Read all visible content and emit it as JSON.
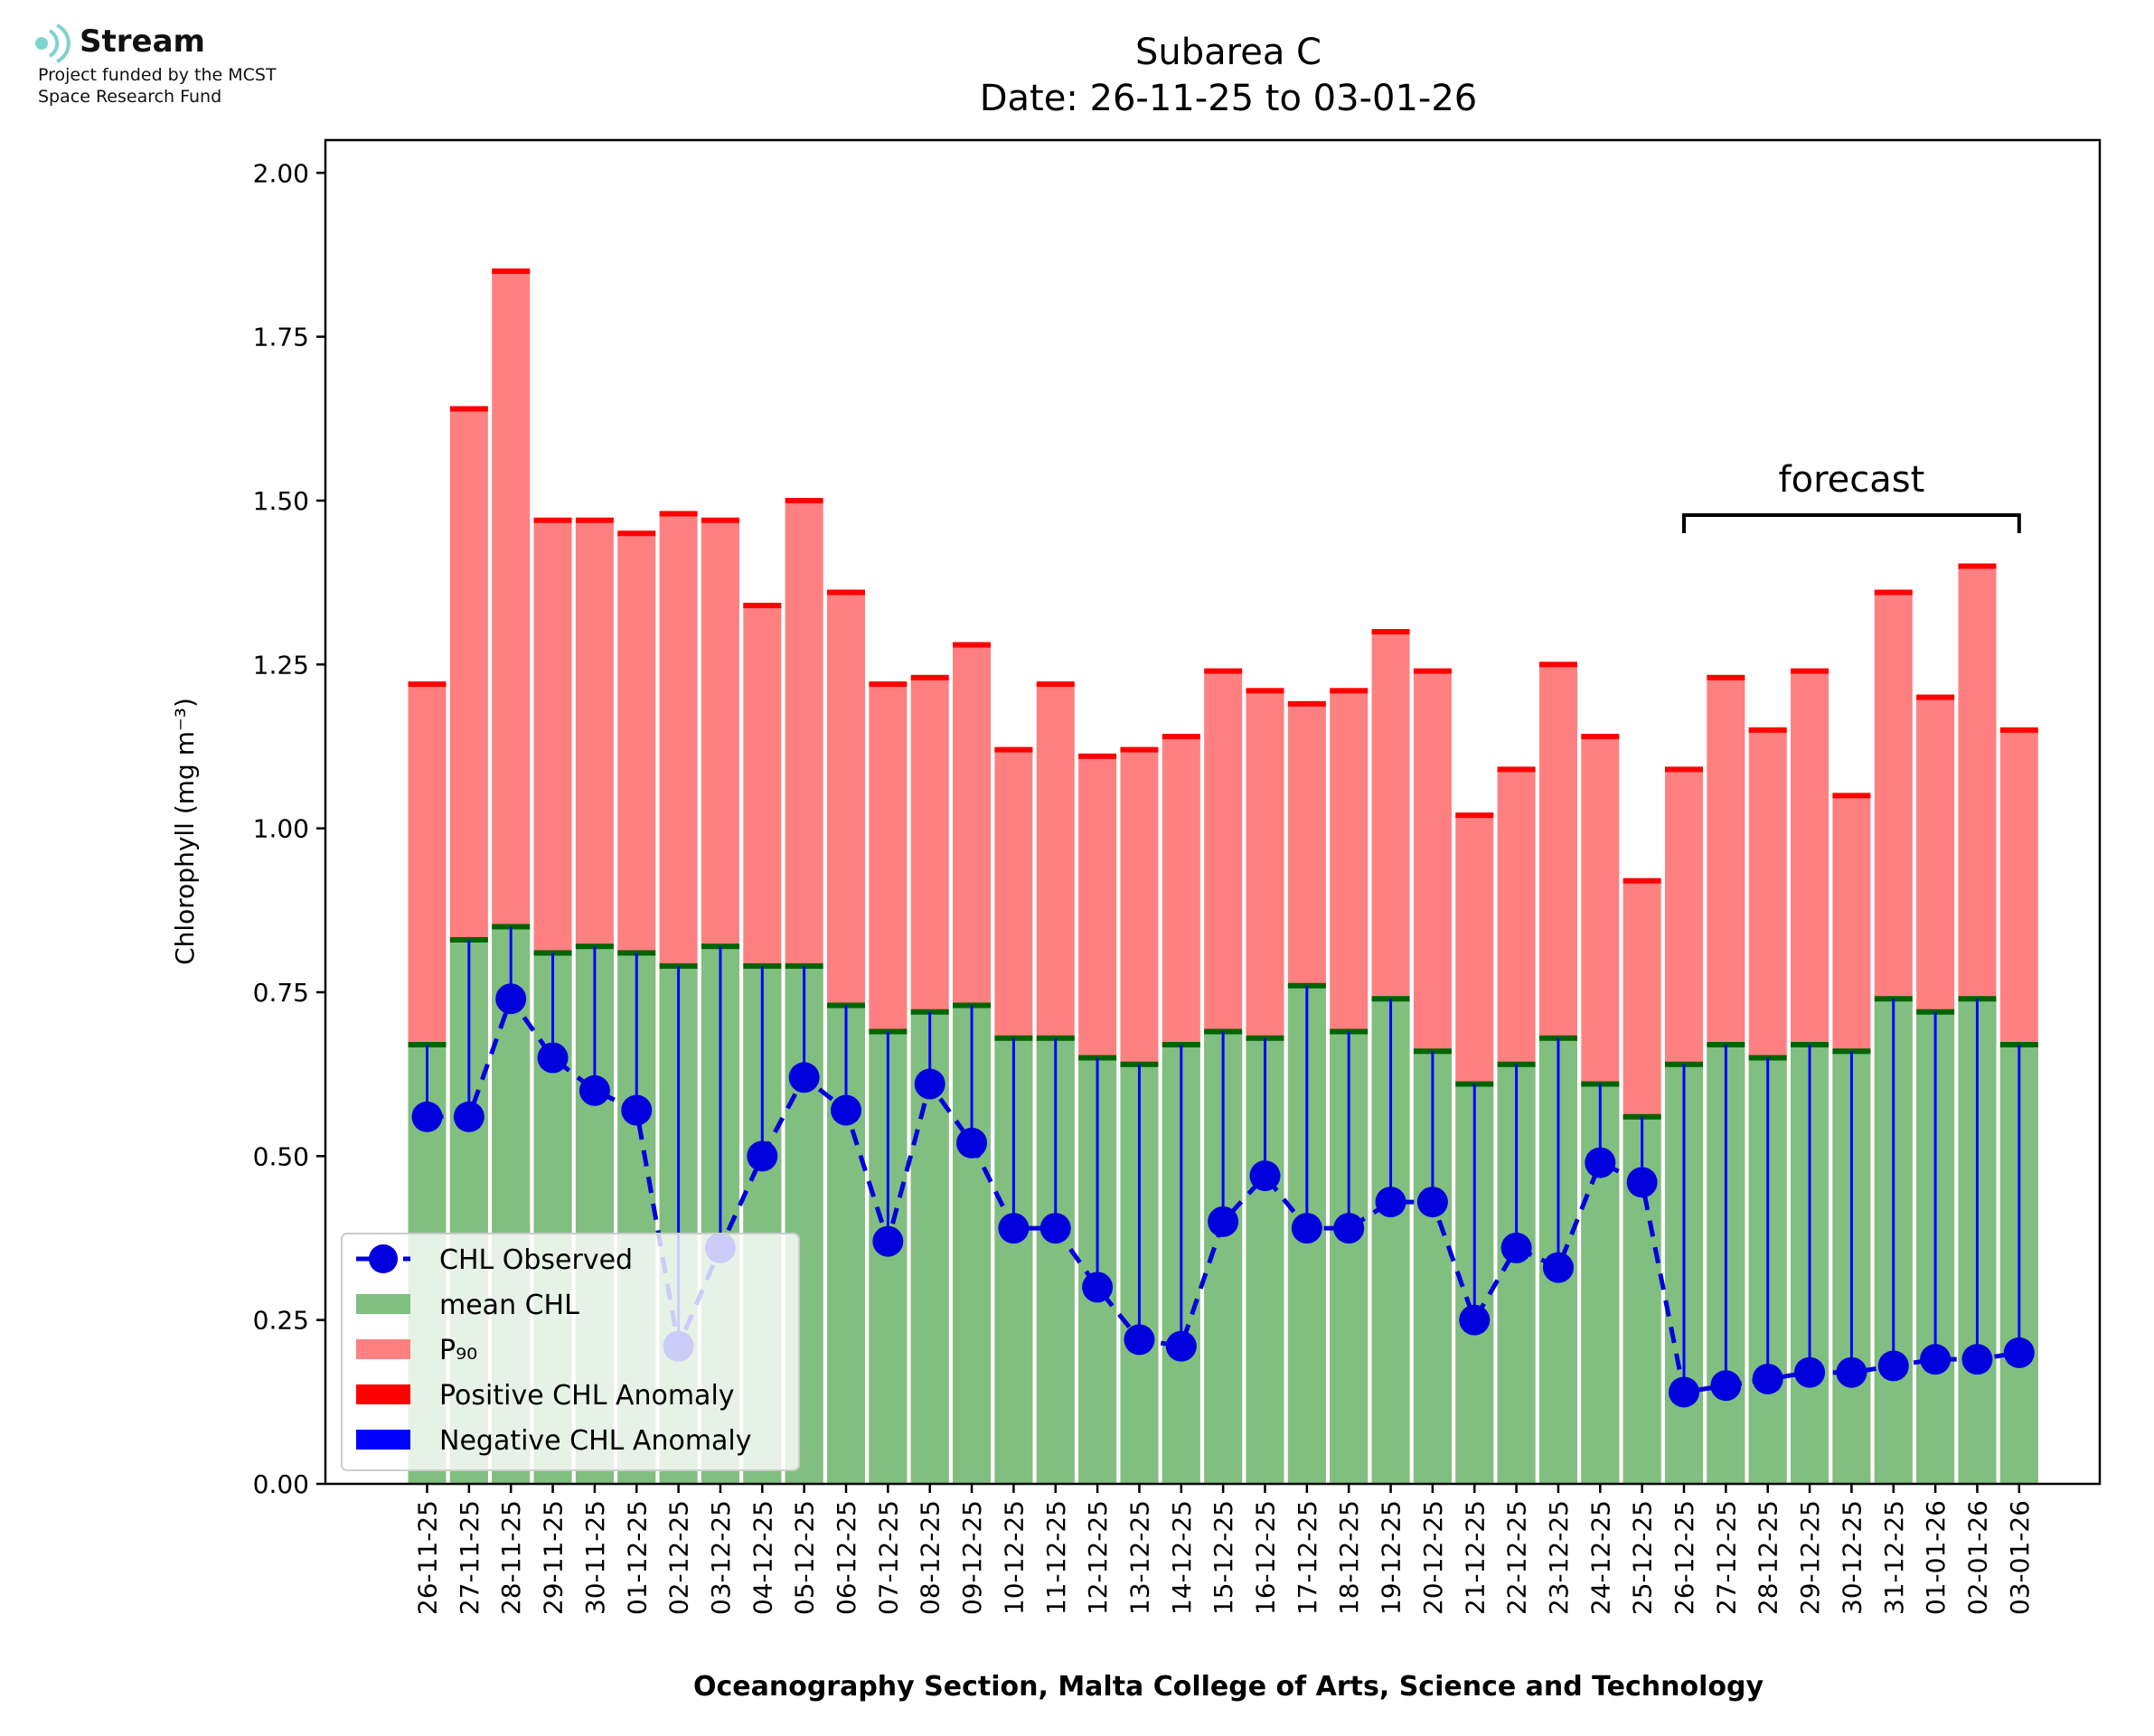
{
  "logo": {
    "name": "Stream",
    "line1": "Project funded by the MCST",
    "line2": "Space Research Fund"
  },
  "chart_data": {
    "type": "bar",
    "title": "Subarea C",
    "subtitle": "Date: 26-11-25 to 03-01-26",
    "xlabel": "Oceanography Section, Malta College of Arts, Science and Technology",
    "ylabel": "Chlorophyll (mg m⁻³)",
    "ylim": [
      0,
      2.05
    ],
    "yticks": [
      "0.00",
      "0.25",
      "0.50",
      "0.75",
      "1.00",
      "1.25",
      "1.50",
      "1.75",
      "2.00"
    ],
    "categories": [
      "26-11-25",
      "27-11-25",
      "28-11-25",
      "29-11-25",
      "30-11-25",
      "01-12-25",
      "02-12-25",
      "03-12-25",
      "04-12-25",
      "05-12-25",
      "06-12-25",
      "07-12-25",
      "08-12-25",
      "09-12-25",
      "10-12-25",
      "11-12-25",
      "12-12-25",
      "13-12-25",
      "14-12-25",
      "15-12-25",
      "16-12-25",
      "17-12-25",
      "18-12-25",
      "19-12-25",
      "20-12-25",
      "21-12-25",
      "22-12-25",
      "23-12-25",
      "24-12-25",
      "25-12-25",
      "26-12-25",
      "27-12-25",
      "28-12-25",
      "29-12-25",
      "30-12-25",
      "31-12-25",
      "01-01-26",
      "02-01-26",
      "03-01-26"
    ],
    "series": [
      {
        "name": "mean CHL",
        "color": "#80bf80",
        "values": [
          0.67,
          0.83,
          0.85,
          0.81,
          0.82,
          0.81,
          0.79,
          0.82,
          0.79,
          0.79,
          0.73,
          0.69,
          0.72,
          0.73,
          0.68,
          0.68,
          0.65,
          0.64,
          0.67,
          0.69,
          0.68,
          0.76,
          0.69,
          0.74,
          0.66,
          0.61,
          0.64,
          0.68,
          0.61,
          0.56,
          0.64,
          0.67,
          0.65,
          0.67,
          0.66,
          0.74,
          0.72,
          0.74,
          0.67
        ]
      },
      {
        "name": "P₉₀",
        "color": "#ff8080",
        "values": [
          1.22,
          1.64,
          1.85,
          1.47,
          1.47,
          1.45,
          1.48,
          1.47,
          1.34,
          1.5,
          1.36,
          1.22,
          1.23,
          1.28,
          1.12,
          1.22,
          1.11,
          1.12,
          1.14,
          1.24,
          1.21,
          1.19,
          1.21,
          1.3,
          1.24,
          1.02,
          1.09,
          1.25,
          1.14,
          0.92,
          1.09,
          1.23,
          1.15,
          1.24,
          1.05,
          1.36,
          1.2,
          1.4,
          1.15
        ]
      },
      {
        "name": "CHL Observed",
        "color": "#0000dd",
        "values": [
          0.56,
          0.56,
          0.74,
          0.65,
          0.6,
          0.57,
          0.21,
          0.36,
          0.5,
          0.62,
          0.57,
          0.37,
          0.61,
          0.52,
          0.39,
          0.39,
          0.3,
          0.22,
          0.21,
          0.4,
          0.47,
          0.39,
          0.39,
          0.43,
          0.43,
          0.25,
          0.36,
          0.33,
          0.49,
          0.46,
          0.14,
          0.15,
          0.16,
          0.17,
          0.17,
          0.18,
          0.19,
          0.19,
          0.2
        ]
      }
    ],
    "legend": {
      "position": "lower-left",
      "entries": [
        "CHL Observed",
        "mean CHL",
        "P₉₀",
        "Positive CHL Anomaly",
        "Negative CHL Anomaly"
      ],
      "colors": [
        "#0000dd",
        "#80bf80",
        "#ff8080",
        "#ff0000",
        "#0000ff"
      ]
    },
    "annotation": {
      "text": "forecast",
      "from": "26-12-25",
      "to": "03-01-26"
    },
    "colors": {
      "positive_anomaly": "#ff0000",
      "negative_anomaly": "#0000ff",
      "mean_edge": "#006400"
    }
  }
}
